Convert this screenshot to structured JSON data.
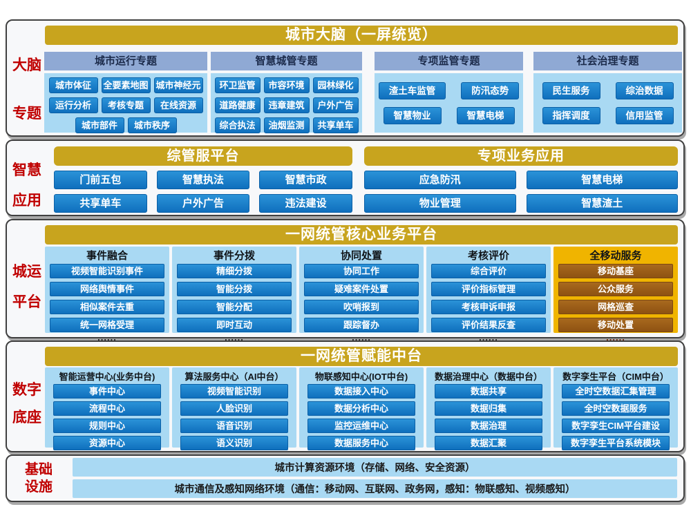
{
  "colors": {
    "gold": "#C8A41E",
    "yellow": "#F0B400",
    "blueTop": "#2B93D8",
    "blueBottom": "#0F6FBD",
    "blueBorder": "#0A5FA6",
    "lightBlue": "#A9D9F3",
    "periwinkle": "#8FA9D4",
    "brownTop": "#A8691E",
    "brownBottom": "#8E5212",
    "brownBorder": "#7C4810",
    "red": "#C00000",
    "bandBorder": "#404040"
  },
  "layers": {
    "brain": {
      "label": [
        "大脑",
        "专题"
      ],
      "header": "城市大脑（一屏统览）",
      "groups": [
        {
          "title": "城市运行专题",
          "items": [
            "城市体征",
            "全要素地图",
            "城市神经元",
            "运行分析",
            "考核专题",
            "在线资源",
            "城市部件",
            "城市秩序"
          ]
        },
        {
          "title": "智慧城管专题",
          "items": [
            "环卫监管",
            "市容环境",
            "园林绿化",
            "道路健康",
            "违章建筑",
            "户外广告",
            "综合执法",
            "油烟监测",
            "共享单车"
          ]
        },
        {
          "title": "专项监管专题",
          "items": [
            "渣土车监管",
            "防汛态势",
            "智慧物业",
            "智慧电梯"
          ]
        },
        {
          "title": "社会治理专题",
          "items": [
            "民生服务",
            "综治数据",
            "指挥调度",
            "信用监管"
          ]
        }
      ]
    },
    "apps": {
      "label": [
        "智慧",
        "应用"
      ],
      "platforms": [
        {
          "title": "综管服平台",
          "items": [
            "门前五包",
            "智慧执法",
            "智慧市政",
            "共享单车",
            "户外广告",
            "违法建设"
          ]
        },
        {
          "title": "专项业务应用",
          "items": [
            "应急防汛",
            "智慧电梯",
            "物业管理",
            "智慧渣土"
          ]
        }
      ]
    },
    "core": {
      "label": [
        "城运",
        "平台"
      ],
      "header": "一网统管核心业务平台",
      "columns": [
        {
          "title": "事件融合",
          "items": [
            "视频智能识别事件",
            "网络舆情事件",
            "相似案件去重",
            "统一网格受理"
          ],
          "more": "......"
        },
        {
          "title": "事件分拨",
          "items": [
            "精细分拨",
            "智能分拨",
            "智能分配",
            "即时互动"
          ],
          "more": "......"
        },
        {
          "title": "协同处置",
          "items": [
            "协同工作",
            "疑难案件处置",
            "吹哨报到",
            "跟踪督办"
          ],
          "more": "......"
        },
        {
          "title": "考核评价",
          "items": [
            "综合评价",
            "评价指标管理",
            "考核申诉申报",
            "评价结果反查"
          ],
          "more": "......"
        },
        {
          "title": "全移动服务",
          "items": [
            "移动基座",
            "公众服务",
            "网格巡查",
            "移动处置"
          ],
          "more": "......"
        }
      ]
    },
    "base": {
      "label": [
        "数字",
        "底座"
      ],
      "header": "一网统管赋能中台",
      "columns": [
        {
          "title": "智能运营中心(业务中台)",
          "items": [
            "事件中心",
            "流程中心",
            "规则中心",
            "资源中心"
          ]
        },
        {
          "title": "算法服务中心（AI中台）",
          "items": [
            "视频智能识别",
            "人脸识别",
            "语音识别",
            "语义识别"
          ]
        },
        {
          "title": "物联感知中心(IOT中台)",
          "items": [
            "数据接入中心",
            "数据分析中心",
            "监控运维中心",
            "数据服务中心"
          ]
        },
        {
          "title": "数据治理中心（数据中台）",
          "items": [
            "数据共享",
            "数据归集",
            "数据治理",
            "数据汇聚"
          ]
        },
        {
          "title": "数字孪生平台（CIM中台）",
          "items": [
            "全时空数据汇集管理",
            "全时空数据服务",
            "数字孪生CIM平台建设",
            "数字孪生平台系统模块"
          ]
        }
      ]
    },
    "infra": {
      "label": [
        "基础",
        "设施"
      ],
      "rows": [
        "城市计算资源环境（存储、网络、安全资源）",
        "城市通信及感知网络环境（通信：移动网、互联网、政务网，感知：物联感知、视频感知）"
      ]
    }
  }
}
